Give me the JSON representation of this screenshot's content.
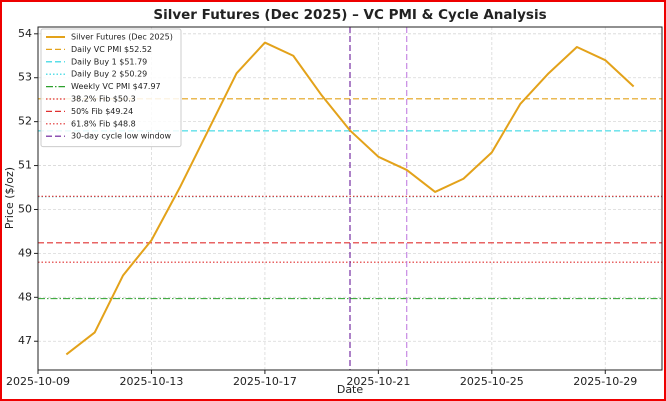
{
  "chart_data": {
    "type": "line",
    "title": "Silver Futures (Dec 2025) – VC PMI & Cycle Analysis",
    "xlabel": "Date",
    "ylabel": "Price ($/oz)",
    "x": [
      "2025-10-10",
      "2025-10-11",
      "2025-10-12",
      "2025-10-13",
      "2025-10-14",
      "2025-10-15",
      "2025-10-16",
      "2025-10-17",
      "2025-10-18",
      "2025-10-19",
      "2025-10-20",
      "2025-10-21",
      "2025-10-22",
      "2025-10-23",
      "2025-10-24",
      "2025-10-25",
      "2025-10-26",
      "2025-10-27",
      "2025-10-28",
      "2025-10-29",
      "2025-10-30"
    ],
    "series": [
      {
        "name": "Silver Futures (Dec 2025)",
        "color": "#e3a21a",
        "values": [
          46.7,
          47.2,
          48.5,
          49.3,
          50.5,
          51.8,
          53.1,
          53.8,
          53.5,
          52.6,
          51.8,
          51.2,
          50.9,
          50.4,
          50.7,
          51.3,
          52.4,
          53.1,
          53.7,
          53.4,
          52.8
        ]
      }
    ],
    "hlines": [
      {
        "label": "Daily VC PMI $52.52",
        "value": 52.52,
        "color": "#e3a21a",
        "style": "dashed"
      },
      {
        "label": "Daily Buy 1 $51.79",
        "value": 51.79,
        "color": "#22d3e0",
        "style": "dashed"
      },
      {
        "label": "Daily Buy 2 $50.29",
        "value": 50.29,
        "color": "#22d3e0",
        "style": "dotted"
      },
      {
        "label": "Weekly VC PMI $47.97",
        "value": 47.97,
        "color": "#2ca02c",
        "style": "dashdot"
      },
      {
        "label": "38.2% Fib $50.3",
        "value": 50.3,
        "color": "#e03030",
        "style": "dotted"
      },
      {
        "label": "50% Fib $49.24",
        "value": 49.24,
        "color": "#e03030",
        "style": "dashed"
      },
      {
        "label": "61.8% Fib $48.8",
        "value": 48.8,
        "color": "#e03030",
        "style": "dotted"
      }
    ],
    "vlines": {
      "name": "30-day cycle low window",
      "x": [
        "2025-10-20",
        "2025-10-22"
      ],
      "colors": [
        "#6a1b9a",
        "#c27ee0"
      ]
    },
    "xlim": [
      "2025-10-09",
      "2025-10-31"
    ],
    "xticks": [
      "2025-10-09",
      "2025-10-13",
      "2025-10-17",
      "2025-10-21",
      "2025-10-25",
      "2025-10-29"
    ],
    "ylim": [
      46.345,
      54.155
    ],
    "yticks": [
      47,
      48,
      49,
      50,
      51,
      52,
      53,
      54
    ],
    "grid": true,
    "legend": "upper left"
  }
}
